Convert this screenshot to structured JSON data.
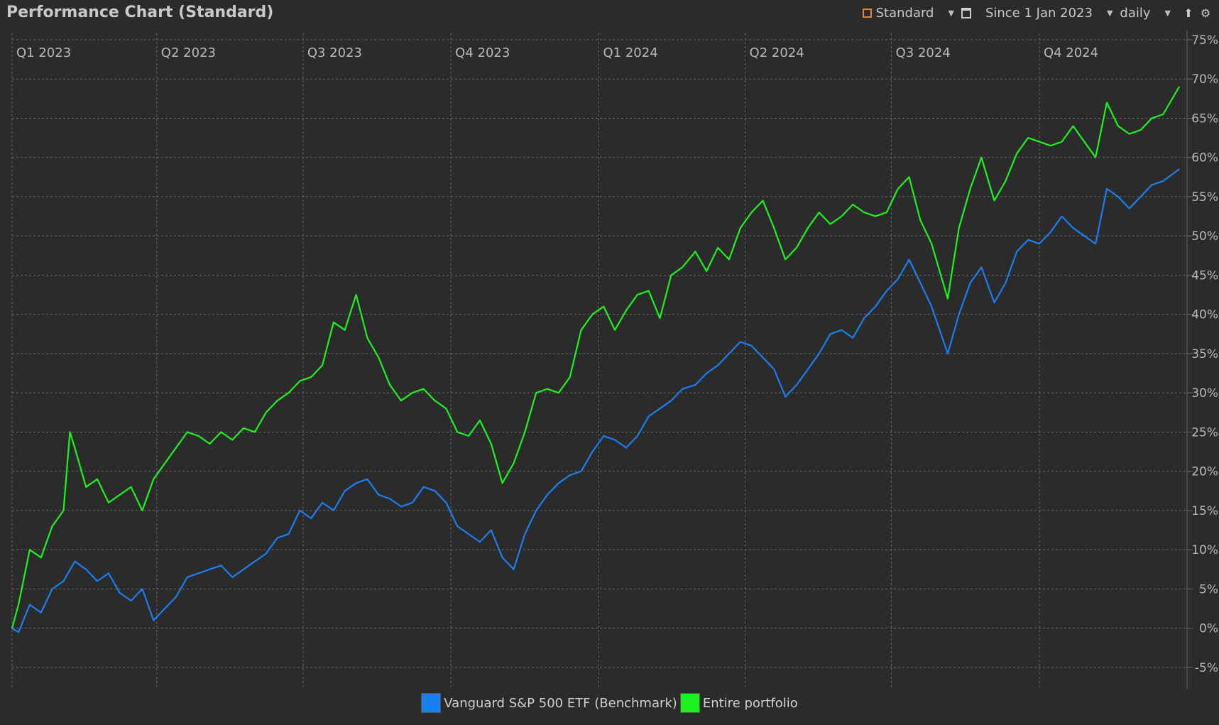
{
  "window": {
    "title": "Performance Chart (Standard)"
  },
  "toolbar": {
    "view_label": "Standard",
    "view_icon": "chart-config-icon",
    "period_label": "Since 1 Jan 2023",
    "period_icon": "calendar-icon",
    "interval_label": "daily",
    "export_icon": "export-icon",
    "settings_icon": "gear-icon"
  },
  "colors": {
    "benchmark": "#1a7ff0",
    "portfolio": "#1ef21e",
    "background": "#2b2b2b",
    "grid": "#6a6a6a"
  },
  "chart_data": {
    "type": "line",
    "title": "Performance Chart (Standard)",
    "x_label_position": "top",
    "y_axis_side": "right",
    "grid": true,
    "legend_position": "bottom-center",
    "xlim": [
      "2023-01-01",
      "2024-12-31"
    ],
    "ylim": [
      -7,
      75
    ],
    "x_ticks": [
      {
        "date": "2023-01-01",
        "label": "Q1 2023"
      },
      {
        "date": "2023-04-01",
        "label": "Q2 2023"
      },
      {
        "date": "2023-07-01",
        "label": "Q3 2023"
      },
      {
        "date": "2023-10-01",
        "label": "Q4 2023"
      },
      {
        "date": "2024-01-01",
        "label": "Q1 2024"
      },
      {
        "date": "2024-04-01",
        "label": "Q2 2024"
      },
      {
        "date": "2024-07-01",
        "label": "Q3 2024"
      },
      {
        "date": "2024-10-01",
        "label": "Q4 2024"
      }
    ],
    "y_ticks": [
      -5,
      0,
      5,
      10,
      15,
      20,
      25,
      30,
      35,
      40,
      45,
      50,
      55,
      60,
      65,
      70,
      75
    ],
    "y_tick_labels": [
      "-5%",
      "0%",
      "5%",
      "10%",
      "15%",
      "20%",
      "25%",
      "30%",
      "35%",
      "40%",
      "45%",
      "50%",
      "55%",
      "60%",
      "65%",
      "70%",
      "75%"
    ],
    "series": [
      {
        "name": "Vanguard S&P 500 ETF (Benchmark)",
        "color": "#1a7ff0",
        "points": [
          [
            "2023-01-01",
            0
          ],
          [
            "2023-01-05",
            -0.5
          ],
          [
            "2023-01-12",
            3
          ],
          [
            "2023-01-19",
            2
          ],
          [
            "2023-01-26",
            5
          ],
          [
            "2023-02-02",
            6
          ],
          [
            "2023-02-09",
            8.5
          ],
          [
            "2023-02-16",
            7.5
          ],
          [
            "2023-02-23",
            6
          ],
          [
            "2023-03-02",
            7
          ],
          [
            "2023-03-09",
            4.5
          ],
          [
            "2023-03-16",
            3.5
          ],
          [
            "2023-03-23",
            5
          ],
          [
            "2023-03-30",
            1
          ],
          [
            "2023-04-06",
            2.5
          ],
          [
            "2023-04-13",
            4
          ],
          [
            "2023-04-20",
            6.5
          ],
          [
            "2023-04-27",
            7
          ],
          [
            "2023-05-04",
            7.5
          ],
          [
            "2023-05-11",
            8
          ],
          [
            "2023-05-18",
            6.5
          ],
          [
            "2023-05-25",
            7.5
          ],
          [
            "2023-06-01",
            8.5
          ],
          [
            "2023-06-08",
            9.5
          ],
          [
            "2023-06-15",
            11.5
          ],
          [
            "2023-06-22",
            12
          ],
          [
            "2023-06-29",
            15
          ],
          [
            "2023-07-06",
            14
          ],
          [
            "2023-07-13",
            16
          ],
          [
            "2023-07-20",
            15
          ],
          [
            "2023-07-27",
            17.5
          ],
          [
            "2023-08-03",
            18.5
          ],
          [
            "2023-08-10",
            19
          ],
          [
            "2023-08-17",
            17
          ],
          [
            "2023-08-24",
            16.5
          ],
          [
            "2023-08-31",
            15.5
          ],
          [
            "2023-09-07",
            16
          ],
          [
            "2023-09-14",
            18
          ],
          [
            "2023-09-21",
            17.5
          ],
          [
            "2023-09-28",
            16
          ],
          [
            "2023-10-05",
            13
          ],
          [
            "2023-10-12",
            12
          ],
          [
            "2023-10-19",
            11
          ],
          [
            "2023-10-26",
            12.5
          ],
          [
            "2023-11-02",
            9
          ],
          [
            "2023-11-09",
            7.5
          ],
          [
            "2023-11-16",
            12
          ],
          [
            "2023-11-23",
            15
          ],
          [
            "2023-11-30",
            17
          ],
          [
            "2023-12-07",
            18.5
          ],
          [
            "2023-12-14",
            19.5
          ],
          [
            "2023-12-21",
            20
          ],
          [
            "2023-12-28",
            22.5
          ],
          [
            "2024-01-04",
            24.5
          ],
          [
            "2024-01-11",
            24
          ],
          [
            "2024-01-18",
            23
          ],
          [
            "2024-01-25",
            24.5
          ],
          [
            "2024-02-01",
            27
          ],
          [
            "2024-02-08",
            28
          ],
          [
            "2024-02-15",
            29
          ],
          [
            "2024-02-22",
            30.5
          ],
          [
            "2024-03-01",
            31
          ],
          [
            "2024-03-08",
            32.5
          ],
          [
            "2024-03-15",
            33.5
          ],
          [
            "2024-03-22",
            35
          ],
          [
            "2024-03-29",
            36.5
          ],
          [
            "2024-04-05",
            36
          ],
          [
            "2024-04-12",
            34.5
          ],
          [
            "2024-04-19",
            33
          ],
          [
            "2024-04-26",
            29.5
          ],
          [
            "2024-05-03",
            31
          ],
          [
            "2024-05-10",
            33
          ],
          [
            "2024-05-17",
            35
          ],
          [
            "2024-05-24",
            37.5
          ],
          [
            "2024-05-31",
            38
          ],
          [
            "2024-06-07",
            37
          ],
          [
            "2024-06-14",
            39.5
          ],
          [
            "2024-06-21",
            41
          ],
          [
            "2024-06-28",
            43
          ],
          [
            "2024-07-05",
            44.5
          ],
          [
            "2024-07-12",
            47
          ],
          [
            "2024-07-19",
            44
          ],
          [
            "2024-07-26",
            41
          ],
          [
            "2024-08-05",
            35
          ],
          [
            "2024-08-12",
            40
          ],
          [
            "2024-08-19",
            44
          ],
          [
            "2024-08-26",
            46
          ],
          [
            "2024-09-03",
            41.5
          ],
          [
            "2024-09-10",
            44
          ],
          [
            "2024-09-17",
            48
          ],
          [
            "2024-09-24",
            49.5
          ],
          [
            "2024-10-01",
            49
          ],
          [
            "2024-10-08",
            50.5
          ],
          [
            "2024-10-15",
            52.5
          ],
          [
            "2024-10-22",
            51
          ],
          [
            "2024-10-29",
            50
          ],
          [
            "2024-11-05",
            49
          ],
          [
            "2024-11-12",
            56
          ],
          [
            "2024-11-19",
            55
          ],
          [
            "2024-11-26",
            53.5
          ],
          [
            "2024-12-03",
            55
          ],
          [
            "2024-12-10",
            56.5
          ],
          [
            "2024-12-17",
            57
          ],
          [
            "2024-12-27",
            58.5
          ]
        ]
      },
      {
        "name": "Entire portfolio",
        "color": "#1ef21e",
        "points": [
          [
            "2023-01-01",
            0
          ],
          [
            "2023-01-05",
            3
          ],
          [
            "2023-01-12",
            10
          ],
          [
            "2023-01-19",
            9
          ],
          [
            "2023-01-26",
            13
          ],
          [
            "2023-02-02",
            15
          ],
          [
            "2023-02-06",
            25
          ],
          [
            "2023-02-09",
            23
          ],
          [
            "2023-02-16",
            18
          ],
          [
            "2023-02-23",
            19
          ],
          [
            "2023-03-02",
            16
          ],
          [
            "2023-03-09",
            17
          ],
          [
            "2023-03-16",
            18
          ],
          [
            "2023-03-23",
            15
          ],
          [
            "2023-03-30",
            19
          ],
          [
            "2023-04-06",
            21
          ],
          [
            "2023-04-13",
            23
          ],
          [
            "2023-04-20",
            25
          ],
          [
            "2023-04-27",
            24.5
          ],
          [
            "2023-05-04",
            23.5
          ],
          [
            "2023-05-11",
            25
          ],
          [
            "2023-05-18",
            24
          ],
          [
            "2023-05-25",
            25.5
          ],
          [
            "2023-06-01",
            25
          ],
          [
            "2023-06-08",
            27.5
          ],
          [
            "2023-06-15",
            29
          ],
          [
            "2023-06-22",
            30
          ],
          [
            "2023-06-29",
            31.5
          ],
          [
            "2023-07-06",
            32
          ],
          [
            "2023-07-13",
            33.5
          ],
          [
            "2023-07-20",
            39
          ],
          [
            "2023-07-27",
            38
          ],
          [
            "2023-08-03",
            42.5
          ],
          [
            "2023-08-10",
            37
          ],
          [
            "2023-08-17",
            34.5
          ],
          [
            "2023-08-24",
            31
          ],
          [
            "2023-08-31",
            29
          ],
          [
            "2023-09-07",
            30
          ],
          [
            "2023-09-14",
            30.5
          ],
          [
            "2023-09-21",
            29
          ],
          [
            "2023-09-28",
            28
          ],
          [
            "2023-10-05",
            25
          ],
          [
            "2023-10-12",
            24.5
          ],
          [
            "2023-10-19",
            26.5
          ],
          [
            "2023-10-26",
            23.5
          ],
          [
            "2023-11-02",
            18.5
          ],
          [
            "2023-11-09",
            21
          ],
          [
            "2023-11-16",
            25
          ],
          [
            "2023-11-23",
            30
          ],
          [
            "2023-11-30",
            30.5
          ],
          [
            "2023-12-07",
            30
          ],
          [
            "2023-12-14",
            32
          ],
          [
            "2023-12-21",
            38
          ],
          [
            "2023-12-28",
            40
          ],
          [
            "2024-01-04",
            41
          ],
          [
            "2024-01-11",
            38
          ],
          [
            "2024-01-18",
            40.5
          ],
          [
            "2024-01-25",
            42.5
          ],
          [
            "2024-02-01",
            43
          ],
          [
            "2024-02-08",
            39.5
          ],
          [
            "2024-02-15",
            45
          ],
          [
            "2024-02-22",
            46
          ],
          [
            "2024-03-01",
            48
          ],
          [
            "2024-03-08",
            45.5
          ],
          [
            "2024-03-15",
            48.5
          ],
          [
            "2024-03-22",
            47
          ],
          [
            "2024-03-29",
            51
          ],
          [
            "2024-04-05",
            53
          ],
          [
            "2024-04-12",
            54.5
          ],
          [
            "2024-04-19",
            51
          ],
          [
            "2024-04-26",
            47
          ],
          [
            "2024-05-03",
            48.5
          ],
          [
            "2024-05-10",
            51
          ],
          [
            "2024-05-17",
            53
          ],
          [
            "2024-05-24",
            51.5
          ],
          [
            "2024-05-31",
            52.5
          ],
          [
            "2024-06-07",
            54
          ],
          [
            "2024-06-14",
            53
          ],
          [
            "2024-06-21",
            52.5
          ],
          [
            "2024-06-28",
            53
          ],
          [
            "2024-07-05",
            56
          ],
          [
            "2024-07-12",
            57.5
          ],
          [
            "2024-07-19",
            52
          ],
          [
            "2024-07-26",
            49
          ],
          [
            "2024-08-05",
            42
          ],
          [
            "2024-08-12",
            51
          ],
          [
            "2024-08-19",
            56
          ],
          [
            "2024-08-26",
            60
          ],
          [
            "2024-09-03",
            54.5
          ],
          [
            "2024-09-10",
            57
          ],
          [
            "2024-09-17",
            60.5
          ],
          [
            "2024-09-24",
            62.5
          ],
          [
            "2024-10-01",
            62
          ],
          [
            "2024-10-08",
            61.5
          ],
          [
            "2024-10-15",
            62
          ],
          [
            "2024-10-22",
            64
          ],
          [
            "2024-10-29",
            62
          ],
          [
            "2024-11-05",
            60
          ],
          [
            "2024-11-12",
            67
          ],
          [
            "2024-11-19",
            64
          ],
          [
            "2024-11-26",
            63
          ],
          [
            "2024-12-03",
            63.5
          ],
          [
            "2024-12-10",
            65
          ],
          [
            "2024-12-17",
            65.5
          ],
          [
            "2024-12-27",
            69
          ]
        ]
      }
    ]
  }
}
